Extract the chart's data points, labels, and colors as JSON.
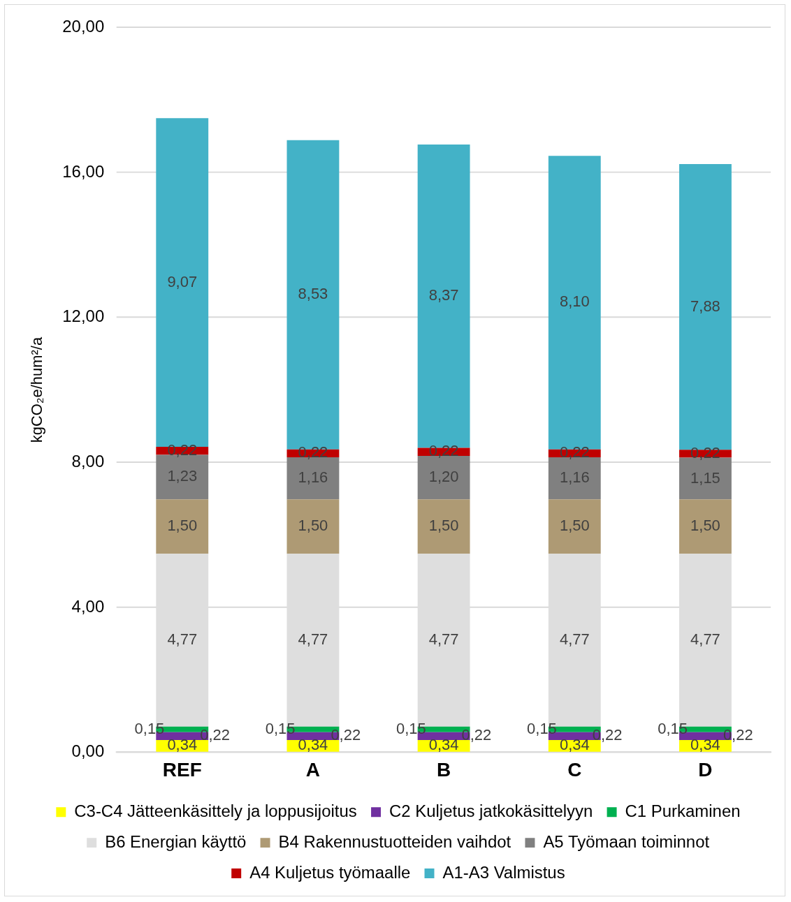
{
  "chart_data": {
    "type": "bar",
    "stacked": true,
    "ylabel": "kgCO₂e/hum²/a",
    "categories": [
      "REF",
      "A",
      "B",
      "C",
      "D"
    ],
    "ylim": [
      0,
      20
    ],
    "yticks": [
      {
        "value": 0,
        "label": "0,00"
      },
      {
        "value": 4,
        "label": "4,00"
      },
      {
        "value": 8,
        "label": "8,00"
      },
      {
        "value": 12,
        "label": "12,00"
      },
      {
        "value": 16,
        "label": "16,00"
      },
      {
        "value": 20,
        "label": "20,00"
      }
    ],
    "grid": "y",
    "legend": "bottom",
    "series": [
      {
        "name": "C3-C4 Jätteenkäsittely ja loppusijoitus",
        "color": "#ffff00",
        "values": [
          0.34,
          0.34,
          0.34,
          0.34,
          0.34
        ],
        "value_labels": [
          "0,34",
          "0,34",
          "0,34",
          "0,34",
          "0,34"
        ]
      },
      {
        "name": "C2 Kuljetus jatkokäsittelyyn",
        "color": "#7030a0",
        "values": [
          0.22,
          0.22,
          0.22,
          0.22,
          0.22
        ],
        "value_labels": [
          "0,22",
          "0,22",
          "0,22",
          "0,22",
          "0,22"
        ]
      },
      {
        "name": "C1 Purkaminen",
        "color": "#00b050",
        "values": [
          0.15,
          0.15,
          0.15,
          0.15,
          0.15
        ],
        "value_labels": [
          "0,15",
          "0,15",
          "0,15",
          "0,15",
          "0,15"
        ]
      },
      {
        "name": "B6 Energian käyttö",
        "color": "#dedede",
        "values": [
          4.77,
          4.77,
          4.77,
          4.77,
          4.77
        ],
        "value_labels": [
          "4,77",
          "4,77",
          "4,77",
          "4,77",
          "4,77"
        ]
      },
      {
        "name": "B4 Rakennustuotteiden vaihdot",
        "color": "#ae9a74",
        "values": [
          1.5,
          1.5,
          1.5,
          1.5,
          1.5
        ],
        "value_labels": [
          "1,50",
          "1,50",
          "1,50",
          "1,50",
          "1,50"
        ]
      },
      {
        "name": "A5 Työmaan toiminnot",
        "color": "#808080",
        "values": [
          1.23,
          1.16,
          1.2,
          1.16,
          1.15
        ],
        "value_labels": [
          "1,23",
          "1,16",
          "1,20",
          "1,16",
          "1,15"
        ]
      },
      {
        "name": "A4 Kuljetus työmaalle",
        "color": "#c00000",
        "values": [
          0.22,
          0.22,
          0.22,
          0.22,
          0.22
        ],
        "value_labels": [
          "0,22",
          "0,22",
          "0,22",
          "0,22",
          "0,22"
        ]
      },
      {
        "name": "A1-A3 Valmistus",
        "color": "#43b2c7",
        "values": [
          9.07,
          8.53,
          8.37,
          8.1,
          7.88
        ],
        "value_labels": [
          "9,07",
          "8,53",
          "8,37",
          "8,10",
          "7,88"
        ]
      }
    ]
  }
}
